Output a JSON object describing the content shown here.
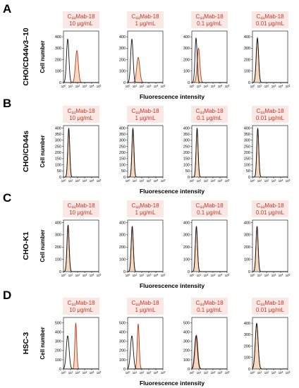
{
  "colors": {
    "control": "#111111",
    "treated": "#b83a22",
    "treated_fill": "#e9b98c",
    "title": "#c0392b",
    "title_bg": "#fbe7e4"
  },
  "common": {
    "ylabel": "Cell number",
    "xlabel": "Fluorescence intensity",
    "title_prefix": "C",
    "title_sub": "44",
    "title_suffix": "Mab-18",
    "xtick_base": "10",
    "xtick_exponents": [
      "0",
      "1",
      "2",
      "3",
      "4",
      "5"
    ]
  },
  "chart_data": [
    {
      "type": "histogram",
      "letter": "A",
      "row_label": "CHO/CD44v3–10",
      "panels": [
        {
          "conc": "10 μg/mL",
          "yticks": [
            "0",
            "100",
            "200",
            "300",
            "400"
          ],
          "ylim": [
            0,
            450
          ],
          "xlim_log10": [
            0,
            5
          ],
          "series": [
            {
              "role": "control",
              "peak_log10": 0.6,
              "width": 0.17,
              "height": 380
            },
            {
              "role": "treated",
              "peak_log10": 1.9,
              "width": 0.2,
              "height": 280
            }
          ]
        },
        {
          "conc": "1 μg/mL",
          "yticks": [
            "0",
            "100",
            "200",
            "300",
            "400"
          ],
          "ylim": [
            0,
            450
          ],
          "xlim_log10": [
            0,
            5
          ],
          "series": [
            {
              "role": "control",
              "peak_log10": 0.6,
              "width": 0.17,
              "height": 380
            },
            {
              "role": "treated",
              "peak_log10": 1.5,
              "width": 0.22,
              "height": 220
            }
          ]
        },
        {
          "conc": "0.1 μg/mL",
          "yticks": [
            "0",
            "100",
            "200",
            "300",
            "400"
          ],
          "ylim": [
            0,
            450
          ],
          "xlim_log10": [
            0,
            5
          ],
          "series": [
            {
              "role": "control",
              "peak_log10": 0.6,
              "width": 0.15,
              "height": 390
            },
            {
              "role": "treated",
              "peak_log10": 0.95,
              "width": 0.19,
              "height": 300
            }
          ]
        },
        {
          "conc": "0.01 μg/mL",
          "yticks": [
            "0",
            "100",
            "200",
            "300",
            "400"
          ],
          "ylim": [
            0,
            450
          ],
          "xlim_log10": [
            0,
            5
          ],
          "series": [
            {
              "role": "control",
              "peak_log10": 0.7,
              "width": 0.17,
              "height": 390
            },
            {
              "role": "treated",
              "peak_log10": 0.7,
              "width": 0.17,
              "height": 385
            }
          ]
        }
      ]
    },
    {
      "type": "histogram",
      "letter": "B",
      "row_label": "CHO/CD44s",
      "panels": [
        {
          "conc": "10 μg/mL",
          "yticks": [
            "0",
            "50",
            "100",
            "150",
            "200",
            "250",
            "300",
            "350",
            "400"
          ],
          "ylim": [
            0,
            420
          ],
          "xlim_log10": [
            0,
            5
          ],
          "series": [
            {
              "role": "control",
              "peak_log10": 0.75,
              "width": 0.14,
              "height": 400
            },
            {
              "role": "treated",
              "peak_log10": 0.75,
              "width": 0.14,
              "height": 390
            }
          ]
        },
        {
          "conc": "1 μg/mL",
          "yticks": [
            "0",
            "50",
            "100",
            "150",
            "200",
            "250",
            "300",
            "350",
            "400"
          ],
          "ylim": [
            0,
            420
          ],
          "xlim_log10": [
            0,
            5
          ],
          "series": [
            {
              "role": "control",
              "peak_log10": 0.75,
              "width": 0.14,
              "height": 400
            },
            {
              "role": "treated",
              "peak_log10": 0.75,
              "width": 0.14,
              "height": 390
            }
          ]
        },
        {
          "conc": "0.1 μg/mL",
          "yticks": [
            "0",
            "50",
            "100",
            "150",
            "200",
            "250",
            "300",
            "350",
            "400"
          ],
          "ylim": [
            0,
            420
          ],
          "xlim_log10": [
            0,
            5
          ],
          "series": [
            {
              "role": "control",
              "peak_log10": 0.75,
              "width": 0.14,
              "height": 400
            },
            {
              "role": "treated",
              "peak_log10": 0.75,
              "width": 0.14,
              "height": 390
            }
          ]
        },
        {
          "conc": "0.01 μg/mL",
          "yticks": [
            "0",
            "50",
            "100",
            "150",
            "200",
            "250",
            "300",
            "350",
            "400"
          ],
          "ylim": [
            0,
            420
          ],
          "xlim_log10": [
            0,
            5
          ],
          "series": [
            {
              "role": "control",
              "peak_log10": 0.75,
              "width": 0.14,
              "height": 400
            },
            {
              "role": "treated",
              "peak_log10": 0.75,
              "width": 0.14,
              "height": 395
            }
          ]
        }
      ]
    },
    {
      "type": "histogram",
      "letter": "C",
      "row_label": "CHO-K1",
      "panels": [
        {
          "conc": "10 μg/mL",
          "yticks": [
            "0",
            "100",
            "200",
            "300",
            "400"
          ],
          "ylim": [
            0,
            420
          ],
          "xlim_log10": [
            0,
            5
          ],
          "series": [
            {
              "role": "control",
              "peak_log10": 0.65,
              "width": 0.15,
              "height": 380
            },
            {
              "role": "treated",
              "peak_log10": 0.65,
              "width": 0.15,
              "height": 375
            }
          ]
        },
        {
          "conc": "1 μg/mL",
          "yticks": [
            "0",
            "100",
            "200",
            "300",
            "400"
          ],
          "ylim": [
            0,
            420
          ],
          "xlim_log10": [
            0,
            5
          ],
          "series": [
            {
              "role": "control",
              "peak_log10": 0.65,
              "width": 0.15,
              "height": 370
            },
            {
              "role": "treated",
              "peak_log10": 0.65,
              "width": 0.15,
              "height": 365
            }
          ]
        },
        {
          "conc": "0.1 μg/mL",
          "yticks": [
            "0",
            "100",
            "200",
            "300",
            "400"
          ],
          "ylim": [
            0,
            420
          ],
          "xlim_log10": [
            0,
            5
          ],
          "series": [
            {
              "role": "control",
              "peak_log10": 0.65,
              "width": 0.15,
              "height": 370
            },
            {
              "role": "treated",
              "peak_log10": 0.65,
              "width": 0.15,
              "height": 365
            }
          ]
        },
        {
          "conc": "0.01 μg/mL",
          "yticks": [
            "0",
            "100",
            "200",
            "300",
            "400"
          ],
          "ylim": [
            0,
            420
          ],
          "xlim_log10": [
            0,
            5
          ],
          "series": [
            {
              "role": "control",
              "peak_log10": 0.65,
              "width": 0.15,
              "height": 370
            },
            {
              "role": "treated",
              "peak_log10": 0.65,
              "width": 0.15,
              "height": 365
            }
          ]
        }
      ]
    },
    {
      "type": "histogram",
      "letter": "D",
      "row_label": "HSC-3",
      "panels": [
        {
          "conc": "10 μg/mL",
          "yticks": [
            "0",
            "100",
            "200",
            "300",
            "400",
            "500"
          ],
          "ylim": [
            0,
            560
          ],
          "xlim_log10": [
            0,
            5
          ],
          "series": [
            {
              "role": "control",
              "peak_log10": 0.6,
              "width": 0.2,
              "height": 360
            },
            {
              "role": "treated",
              "peak_log10": 1.75,
              "width": 0.13,
              "height": 500
            }
          ]
        },
        {
          "conc": "1 μg/mL",
          "yticks": [
            "0",
            "100",
            "200",
            "300",
            "400",
            "500"
          ],
          "ylim": [
            0,
            560
          ],
          "xlim_log10": [
            0,
            5
          ],
          "series": [
            {
              "role": "control",
              "peak_log10": 0.6,
              "width": 0.2,
              "height": 360
            },
            {
              "role": "treated",
              "peak_log10": 1.5,
              "width": 0.14,
              "height": 490
            }
          ]
        },
        {
          "conc": "0.1 μg/mL",
          "yticks": [
            "0",
            "100",
            "200",
            "300",
            "400",
            "500"
          ],
          "ylim": [
            0,
            560
          ],
          "xlim_log10": [
            0,
            5
          ],
          "series": [
            {
              "role": "control",
              "peak_log10": 0.6,
              "width": 0.2,
              "height": 360
            },
            {
              "role": "treated",
              "peak_log10": 0.65,
              "width": 0.2,
              "height": 370
            }
          ]
        },
        {
          "conc": "0.01 μg/mL",
          "yticks": [
            "0",
            "100",
            "200",
            "300",
            "400"
          ],
          "ylim": [
            0,
            450
          ],
          "xlim_log10": [
            0,
            5
          ],
          "series": [
            {
              "role": "control",
              "peak_log10": 0.6,
              "width": 0.2,
              "height": 400
            },
            {
              "role": "treated",
              "peak_log10": 0.6,
              "width": 0.2,
              "height": 395
            }
          ]
        }
      ]
    }
  ]
}
